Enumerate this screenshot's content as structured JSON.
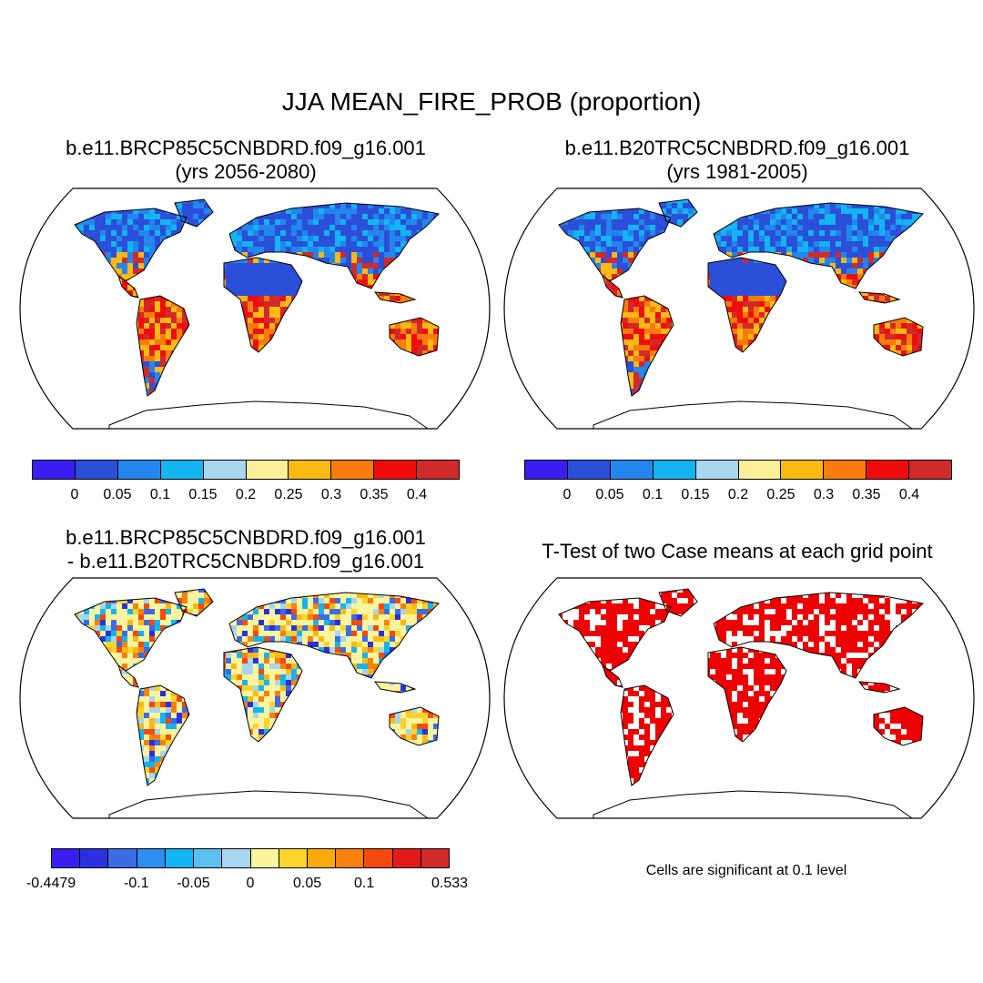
{
  "figure": {
    "title": "JJA MEAN_FIRE_PROB (proportion)"
  },
  "panels": {
    "p1": {
      "line1": "b.e11.BRCP85C5CNBDRD.f09_g16.001",
      "line2": "(yrs 2056-2080)"
    },
    "p2": {
      "line1": "b.e11.B20TRC5CNBDRD.f09_g16.001",
      "line2": "(yrs 1981-2005)"
    },
    "p3": {
      "line1": "b.e11.BRCP85C5CNBDRD.f09_g16.001",
      "line2": "- b.e11.B20TRC5CNBDRD.f09_g16.001"
    },
    "p4": {
      "line1": "T-Test of two Case means at each grid point",
      "note": "Cells are significant at 0.1 level"
    }
  },
  "colorbars": {
    "prob": {
      "colors": [
        "#3a1df0",
        "#2b4fd8",
        "#2386ee",
        "#13b4f2",
        "#a6d6f0",
        "#fbf09a",
        "#fbb914",
        "#f87c0c",
        "#f00c0c",
        "#d02a2a"
      ],
      "labels": [
        "0",
        "0.05",
        "0.1",
        "0.15",
        "0.2",
        "0.25",
        "0.3",
        "0.35",
        "0.4"
      ]
    },
    "diff": {
      "colors": [
        "#3a1df0",
        "#2a30e0",
        "#3a6ce6",
        "#2b8ef0",
        "#13b4f2",
        "#5bc0ee",
        "#a6d6f0",
        "#fbf49e",
        "#fcd42a",
        "#fbaa0c",
        "#f8800c",
        "#f44a0c",
        "#e41a1a",
        "#d02a2a"
      ],
      "labels": [
        "-0.4479",
        "-0.1",
        "-0.05",
        "0",
        "0.05",
        "0.1",
        "0.533"
      ]
    }
  },
  "significance_color": "#ee0000"
}
